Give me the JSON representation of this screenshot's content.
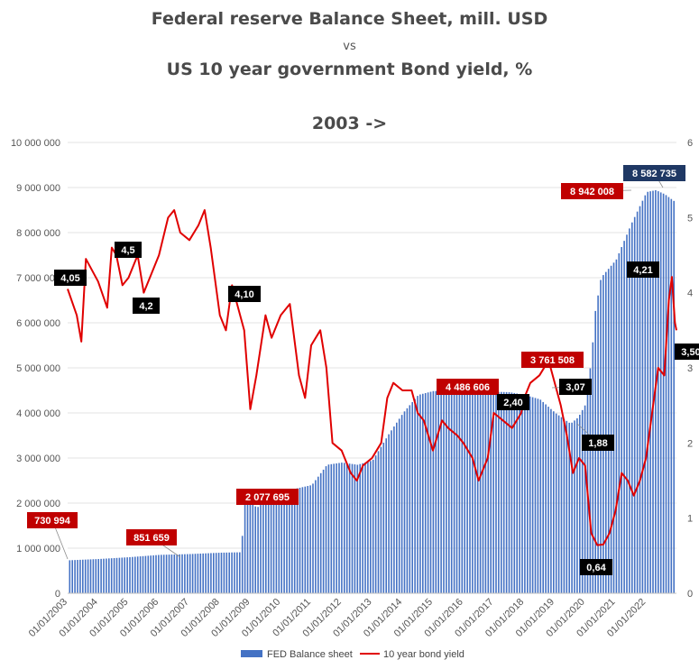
{
  "header": {
    "line1": "Federal reserve Balance Sheet, mill. USD",
    "line2": "vs",
    "line3": "US 10 year government Bond yield, %",
    "line4": "2003 ->"
  },
  "legend": {
    "series1": "FED Balance sheet",
    "series2": "10 year bond yield"
  },
  "colors": {
    "bar": "#4472c4",
    "line": "#e00000",
    "label_red": "#c00000",
    "label_black": "#000000",
    "label_navy": "#1f3864"
  },
  "chart_data": {
    "type": "bar+line",
    "title": "Federal reserve Balance Sheet, mill. USD vs US 10 year government Bond yield, % 2003 ->",
    "categories": [
      "01/01/2003",
      "01/01/2004",
      "01/01/2005",
      "01/01/2006",
      "01/01/2007",
      "01/01/2008",
      "01/01/2009",
      "01/01/2010",
      "01/01/2011",
      "01/01/2012",
      "01/01/2013",
      "01/01/2014",
      "01/01/2015",
      "01/01/2016",
      "01/01/2017",
      "01/01/2018",
      "01/01/2019",
      "01/01/2020",
      "01/01/2021",
      "01/01/2022"
    ],
    "y_left": {
      "min": 0,
      "max": 10000000,
      "ticks": [
        "0",
        "1 000 000",
        "2 000 000",
        "3 000 000",
        "4 000 000",
        "5 000 000",
        "6 000 000",
        "7 000 000",
        "8 000 000",
        "9 000 000",
        "10 000 000"
      ]
    },
    "y_right": {
      "min": 0,
      "max": 6,
      "ticks": [
        "0",
        "1",
        "2",
        "3",
        "4",
        "5",
        "6"
      ]
    },
    "grid": "horizontal",
    "legend_position": "bottom",
    "series": [
      {
        "name": "FED Balance sheet",
        "type": "bar",
        "axis": "left",
        "points": [
          [
            "2003.0",
            730994
          ],
          [
            "2004.0",
            760000
          ],
          [
            "2005.0",
            800000
          ],
          [
            "2006.0",
            851659
          ],
          [
            "2007.0",
            870000
          ],
          [
            "2008.0",
            900000
          ],
          [
            "2008.70",
            910000
          ],
          [
            "2008.75",
            2077695
          ],
          [
            "2008.9",
            2200000
          ],
          [
            "2009.0",
            2000000
          ],
          [
            "2009.2",
            1900000
          ],
          [
            "2009.5",
            2050000
          ],
          [
            "2010.0",
            2250000
          ],
          [
            "2011.0",
            2400000
          ],
          [
            "2011.5",
            2850000
          ],
          [
            "2012.0",
            2900000
          ],
          [
            "2012.5",
            2850000
          ],
          [
            "2013.0",
            2950000
          ],
          [
            "2013.5",
            3500000
          ],
          [
            "2014.0",
            4000000
          ],
          [
            "2014.5",
            4400000
          ],
          [
            "2015.0",
            4486606
          ],
          [
            "2016.0",
            4480000
          ],
          [
            "2017.0",
            4470000
          ],
          [
            "2017.5",
            4460000
          ],
          [
            "2018.0",
            4400000
          ],
          [
            "2018.5",
            4300000
          ],
          [
            "2019.0",
            4000000
          ],
          [
            "2019.5",
            3761508
          ],
          [
            "2019.75",
            3900000
          ],
          [
            "2020.0",
            4200000
          ],
          [
            "2020.2",
            5300000
          ],
          [
            "2020.3",
            6200000
          ],
          [
            "2020.5",
            7000000
          ],
          [
            "2021.0",
            7400000
          ],
          [
            "2021.5",
            8200000
          ],
          [
            "2022.0",
            8900000
          ],
          [
            "2022.3",
            8942008
          ],
          [
            "2022.6",
            8850000
          ],
          [
            "2022.9",
            8700000
          ]
        ]
      },
      {
        "name": "10 year bond yield",
        "type": "line",
        "axis": "right",
        "points": [
          [
            "2003.0",
            4.05
          ],
          [
            "2003.3",
            3.7
          ],
          [
            "2003.45",
            3.35
          ],
          [
            "2003.6",
            4.45
          ],
          [
            "2003.8",
            4.3
          ],
          [
            "2004.0",
            4.15
          ],
          [
            "2004.3",
            3.8
          ],
          [
            "2004.45",
            4.6
          ],
          [
            "2004.6",
            4.5
          ],
          [
            "2004.8",
            4.1
          ],
          [
            "2005.0",
            4.2
          ],
          [
            "2005.3",
            4.5
          ],
          [
            "2005.5",
            4.0
          ],
          [
            "2005.7",
            4.2
          ],
          [
            "2006.0",
            4.5
          ],
          [
            "2006.3",
            5.0
          ],
          [
            "2006.5",
            5.1
          ],
          [
            "2006.7",
            4.8
          ],
          [
            "2007.0",
            4.7
          ],
          [
            "2007.3",
            4.9
          ],
          [
            "2007.5",
            5.1
          ],
          [
            "2007.7",
            4.6
          ],
          [
            "2008.0",
            3.7
          ],
          [
            "2008.2",
            3.5
          ],
          [
            "2008.4",
            4.1
          ],
          [
            "2008.6",
            3.8
          ],
          [
            "2008.8",
            3.5
          ],
          [
            "2009.0",
            2.45
          ],
          [
            "2009.2",
            2.9
          ],
          [
            "2009.5",
            3.7
          ],
          [
            "2009.7",
            3.4
          ],
          [
            "2010.0",
            3.7
          ],
          [
            "2010.3",
            3.85
          ],
          [
            "2010.6",
            2.9
          ],
          [
            "2010.8",
            2.6
          ],
          [
            "2011.0",
            3.3
          ],
          [
            "2011.3",
            3.5
          ],
          [
            "2011.5",
            3.0
          ],
          [
            "2011.7",
            2.0
          ],
          [
            "2012.0",
            1.9
          ],
          [
            "2012.3",
            1.6
          ],
          [
            "2012.5",
            1.5
          ],
          [
            "2012.7",
            1.7
          ],
          [
            "2013.0",
            1.8
          ],
          [
            "2013.3",
            2.0
          ],
          [
            "2013.5",
            2.6
          ],
          [
            "2013.7",
            2.8
          ],
          [
            "2014.0",
            2.7
          ],
          [
            "2014.3",
            2.7
          ],
          [
            "2014.5",
            2.4
          ],
          [
            "2014.7",
            2.3
          ],
          [
            "2015.0",
            1.9
          ],
          [
            "2015.3",
            2.3
          ],
          [
            "2015.5",
            2.2
          ],
          [
            "2015.8",
            2.1
          ],
          [
            "2016.0",
            2.0
          ],
          [
            "2016.3",
            1.8
          ],
          [
            "2016.5",
            1.5
          ],
          [
            "2016.8",
            1.8
          ],
          [
            "2017.0",
            2.4
          ],
          [
            "2017.3",
            2.3
          ],
          [
            "2017.6",
            2.2
          ],
          [
            "2017.9",
            2.4
          ],
          [
            "2018.0",
            2.6
          ],
          [
            "2018.2",
            2.8
          ],
          [
            "2018.5",
            2.9
          ],
          [
            "2018.8",
            3.1
          ],
          [
            "2019.0",
            2.8
          ],
          [
            "2019.2",
            2.5
          ],
          [
            "2019.4",
            2.1
          ],
          [
            "2019.6",
            1.6
          ],
          [
            "2019.8",
            1.8
          ],
          [
            "2020.0",
            1.7
          ],
          [
            "2020.2",
            0.8
          ],
          [
            "2020.4",
            0.64
          ],
          [
            "2020.6",
            0.65
          ],
          [
            "2020.8",
            0.8
          ],
          [
            "2021.0",
            1.1
          ],
          [
            "2021.2",
            1.6
          ],
          [
            "2021.4",
            1.5
          ],
          [
            "2021.6",
            1.3
          ],
          [
            "2021.8",
            1.5
          ],
          [
            "2022.0",
            1.8
          ],
          [
            "2022.2",
            2.4
          ],
          [
            "2022.4",
            3.0
          ],
          [
            "2022.6",
            2.9
          ],
          [
            "2022.75",
            3.9
          ],
          [
            "2022.85",
            4.21
          ],
          [
            "2022.95",
            3.6
          ],
          [
            "2023.0",
            3.5
          ]
        ]
      }
    ],
    "labels": [
      {
        "text": "730 994",
        "style": "red"
      },
      {
        "text": "851 659",
        "style": "red"
      },
      {
        "text": "2 077 695",
        "style": "red"
      },
      {
        "text": "4 486 606",
        "style": "red"
      },
      {
        "text": "3 761 508",
        "style": "red"
      },
      {
        "text": "8 942 008",
        "style": "red"
      },
      {
        "text": "8 582 735",
        "style": "navy"
      },
      {
        "text": "4,05",
        "style": "black"
      },
      {
        "text": "4,5",
        "style": "black"
      },
      {
        "text": "4,2",
        "style": "black"
      },
      {
        "text": "4,10",
        "style": "black"
      },
      {
        "text": "2,40",
        "style": "black"
      },
      {
        "text": "3,07",
        "style": "black"
      },
      {
        "text": "1,88",
        "style": "black"
      },
      {
        "text": "0,64",
        "style": "black"
      },
      {
        "text": "4,21",
        "style": "black"
      },
      {
        "text": "3,50",
        "style": "black"
      }
    ]
  }
}
